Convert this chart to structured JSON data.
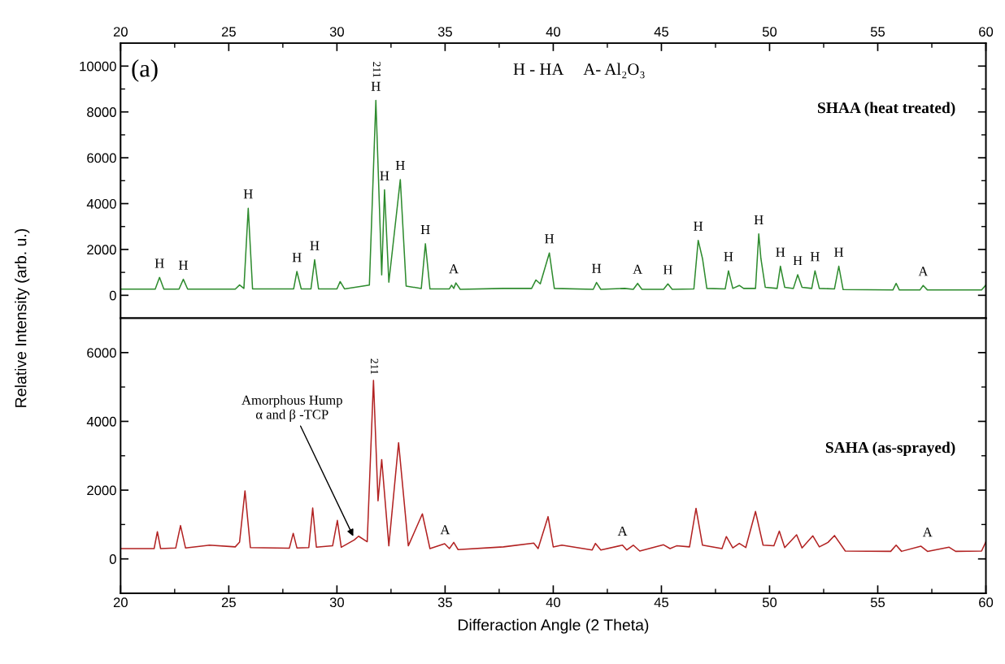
{
  "chart_data": [
    {
      "type": "line",
      "ylabel": "Relative Intensity (arb. u.)",
      "xlim": [
        20,
        60
      ],
      "x2lim": [
        20,
        60
      ],
      "x2ticks": [
        20,
        {
          "value": 22.5,
          "label": null
        },
        25,
        {
          "value": 27.5,
          "label": null
        },
        30,
        {
          "value": 32.5,
          "label": null
        },
        35,
        {
          "value": 37.5,
          "label": null
        },
        40,
        {
          "value": 42.5,
          "label": null
        },
        45,
        {
          "value": 47.5,
          "label": null
        },
        50,
        {
          "value": 52.5,
          "label": null
        },
        55,
        {
          "value": 57.5,
          "label": null
        },
        60
      ],
      "ylim": [
        -1000,
        11000
      ],
      "yticks": [
        {
          "value": -1000,
          "label": null
        },
        0,
        {
          "value": 1000,
          "label": null
        },
        2000,
        {
          "value": 3000,
          "label": null
        },
        4000,
        {
          "value": 5000,
          "label": null
        },
        6000,
        {
          "value": 7000,
          "label": null
        },
        8000,
        {
          "value": 9000,
          "label": null
        },
        10000
      ],
      "tick_labels": "y",
      "series": [
        {
          "name": "SHAA (heat treated)",
          "color": "#2e8b2e",
          "x": [
            20,
            21.6,
            21.8,
            22.0,
            22.7,
            22.9,
            23.1,
            25.3,
            25.5,
            25.7,
            25.9,
            26.1,
            28.0,
            28.15,
            28.35,
            28.8,
            28.97,
            29.15,
            30.0,
            30.15,
            30.35,
            31.5,
            31.8,
            32.07,
            32.2,
            32.4,
            32.93,
            33.2,
            33.9,
            34.09,
            34.3,
            35.2,
            35.3,
            35.4,
            35.5,
            35.7,
            37.7,
            39.0,
            39.2,
            39.4,
            39.82,
            40.05,
            41.85,
            42.0,
            42.2,
            43.3,
            43.7,
            43.9,
            44.1,
            45.1,
            45.3,
            45.5,
            46.5,
            46.7,
            46.9,
            47.1,
            47.95,
            48.1,
            48.3,
            48.6,
            48.8,
            49.35,
            49.5,
            49.6,
            49.8,
            50.35,
            50.5,
            50.7,
            51.1,
            51.3,
            51.5,
            51.95,
            52.1,
            52.3,
            53.0,
            53.2,
            53.4,
            55.7,
            55.85,
            56.0,
            56.95,
            57.1,
            57.3,
            59.8,
            60
          ],
          "values": [
            270,
            270,
            780,
            270,
            270,
            700,
            270,
            270,
            450,
            300,
            3800,
            280,
            280,
            1040,
            280,
            280,
            1550,
            280,
            280,
            600,
            280,
            450,
            8500,
            890,
            4600,
            570,
            5050,
            400,
            300,
            2250,
            280,
            280,
            440,
            300,
            540,
            260,
            300,
            300,
            670,
            500,
            1850,
            300,
            260,
            560,
            260,
            300,
            260,
            520,
            260,
            260,
            500,
            260,
            280,
            2400,
            1600,
            300,
            280,
            1070,
            300,
            430,
            300,
            300,
            2680,
            1600,
            350,
            300,
            1270,
            350,
            300,
            900,
            350,
            300,
            1070,
            300,
            280,
            1270,
            250,
            230,
            520,
            230,
            230,
            430,
            230,
            230,
            450
          ]
        }
      ],
      "annotations": [
        "(a)",
        "H - HA     A- Al₂O₃",
        {
          "text": "H",
          "x": 21.8,
          "y": 780
        },
        {
          "text": "H",
          "x": 22.9,
          "y": 700
        },
        {
          "text": "H",
          "x": 25.9,
          "y": 3800
        },
        {
          "text": "H",
          "x": 28.15,
          "y": 1040
        },
        {
          "text": "H",
          "x": 28.97,
          "y": 1550
        },
        {
          "text": "H",
          "x": 31.8,
          "y": 8500
        },
        {
          "text": "211",
          "x": 31.8,
          "y": 8500
        },
        {
          "text": "H",
          "x": 32.2,
          "y": 4600
        },
        {
          "text": "H",
          "x": 32.93,
          "y": 5050
        },
        {
          "text": "H",
          "x": 34.09,
          "y": 2250
        },
        {
          "text": "A",
          "x": 35.4,
          "y": 540
        },
        {
          "text": "H",
          "x": 39.82,
          "y": 1850
        },
        {
          "text": "H",
          "x": 42.0,
          "y": 560
        },
        {
          "text": "A",
          "x": 43.9,
          "y": 520
        },
        {
          "text": "H",
          "x": 45.3,
          "y": 500
        },
        {
          "text": "H",
          "x": 46.7,
          "y": 2400
        },
        {
          "text": "H",
          "x": 48.1,
          "y": 1070
        },
        {
          "text": "H",
          "x": 49.5,
          "y": 2680
        },
        {
          "text": "H",
          "x": 50.5,
          "y": 1270
        },
        {
          "text": "H",
          "x": 51.3,
          "y": 900
        },
        {
          "text": "H",
          "x": 52.1,
          "y": 1070
        },
        {
          "text": "H",
          "x": 53.2,
          "y": 1270
        },
        {
          "text": "A",
          "x": 57.1,
          "y": 430
        }
      ]
    },
    {
      "type": "line",
      "xlabel": "Differaction Angle (2 Theta)",
      "xlim": [
        20,
        60
      ],
      "xticks": [
        20,
        {
          "value": 22.5,
          "label": null
        },
        25,
        {
          "value": 27.5,
          "label": null
        },
        30,
        {
          "value": 32.5,
          "label": null
        },
        35,
        {
          "value": 37.5,
          "label": null
        },
        40,
        {
          "value": 42.5,
          "label": null
        },
        45,
        {
          "value": 47.5,
          "label": null
        },
        50,
        {
          "value": 52.5,
          "label": null
        },
        55,
        {
          "value": 57.5,
          "label": null
        },
        60
      ],
      "ylim": [
        -1000,
        7000
      ],
      "yticks": [
        0,
        {
          "value": 1000,
          "label": null
        },
        2000,
        {
          "value": 3000,
          "label": null
        },
        4000,
        {
          "value": 5000,
          "label": null
        },
        6000
      ],
      "series": [
        {
          "name": "SAHA (as-sprayed)",
          "color": "#b22222",
          "x": [
            20,
            21.55,
            21.7,
            21.85,
            22.55,
            22.77,
            23.0,
            24.1,
            25.3,
            25.5,
            25.75,
            26.0,
            27.8,
            27.98,
            28.15,
            28.7,
            28.88,
            29.05,
            29.8,
            30.02,
            30.2,
            30.8,
            31.0,
            31.4,
            31.69,
            31.9,
            32.07,
            32.4,
            32.85,
            33.3,
            33.95,
            34.3,
            34.98,
            35.2,
            35.4,
            35.6,
            37.7,
            39.1,
            39.3,
            39.76,
            40.0,
            40.4,
            41.8,
            41.95,
            42.2,
            43.2,
            43.4,
            43.7,
            44.0,
            45.1,
            45.4,
            45.7,
            46.3,
            46.6,
            46.9,
            47.8,
            48.0,
            48.3,
            48.6,
            48.9,
            49.35,
            49.7,
            50.2,
            50.45,
            50.7,
            51.25,
            51.5,
            52.0,
            52.3,
            52.7,
            53.0,
            53.5,
            55.6,
            55.85,
            56.1,
            57.0,
            57.3,
            58.3,
            58.6,
            59.8,
            60
          ],
          "values": [
            300,
            300,
            790,
            300,
            320,
            970,
            320,
            400,
            350,
            490,
            1980,
            330,
            310,
            745,
            320,
            330,
            1480,
            340,
            380,
            1120,
            340,
            550,
            660,
            500,
            5190,
            1690,
            2890,
            380,
            3380,
            380,
            1310,
            300,
            440,
            300,
            480,
            270,
            350,
            460,
            300,
            1230,
            350,
            400,
            260,
            450,
            260,
            400,
            260,
            400,
            230,
            410,
            300,
            380,
            350,
            1470,
            400,
            300,
            650,
            320,
            450,
            330,
            1380,
            400,
            380,
            810,
            330,
            700,
            320,
            670,
            350,
            480,
            680,
            230,
            220,
            400,
            220,
            370,
            220,
            340,
            220,
            230,
            500
          ]
        }
      ],
      "annotations": [
        {
          "text": "211",
          "x": 31.69,
          "y": 5190
        },
        {
          "text": "Amorphous Hump\nα and β -TCP",
          "x": 30.8,
          "y": 600
        },
        {
          "text": "A",
          "x": 35.0,
          "y": 440
        },
        {
          "text": "A",
          "x": 43.2,
          "y": 400
        },
        {
          "text": "A",
          "x": 57.3,
          "y": 370
        }
      ]
    }
  ]
}
